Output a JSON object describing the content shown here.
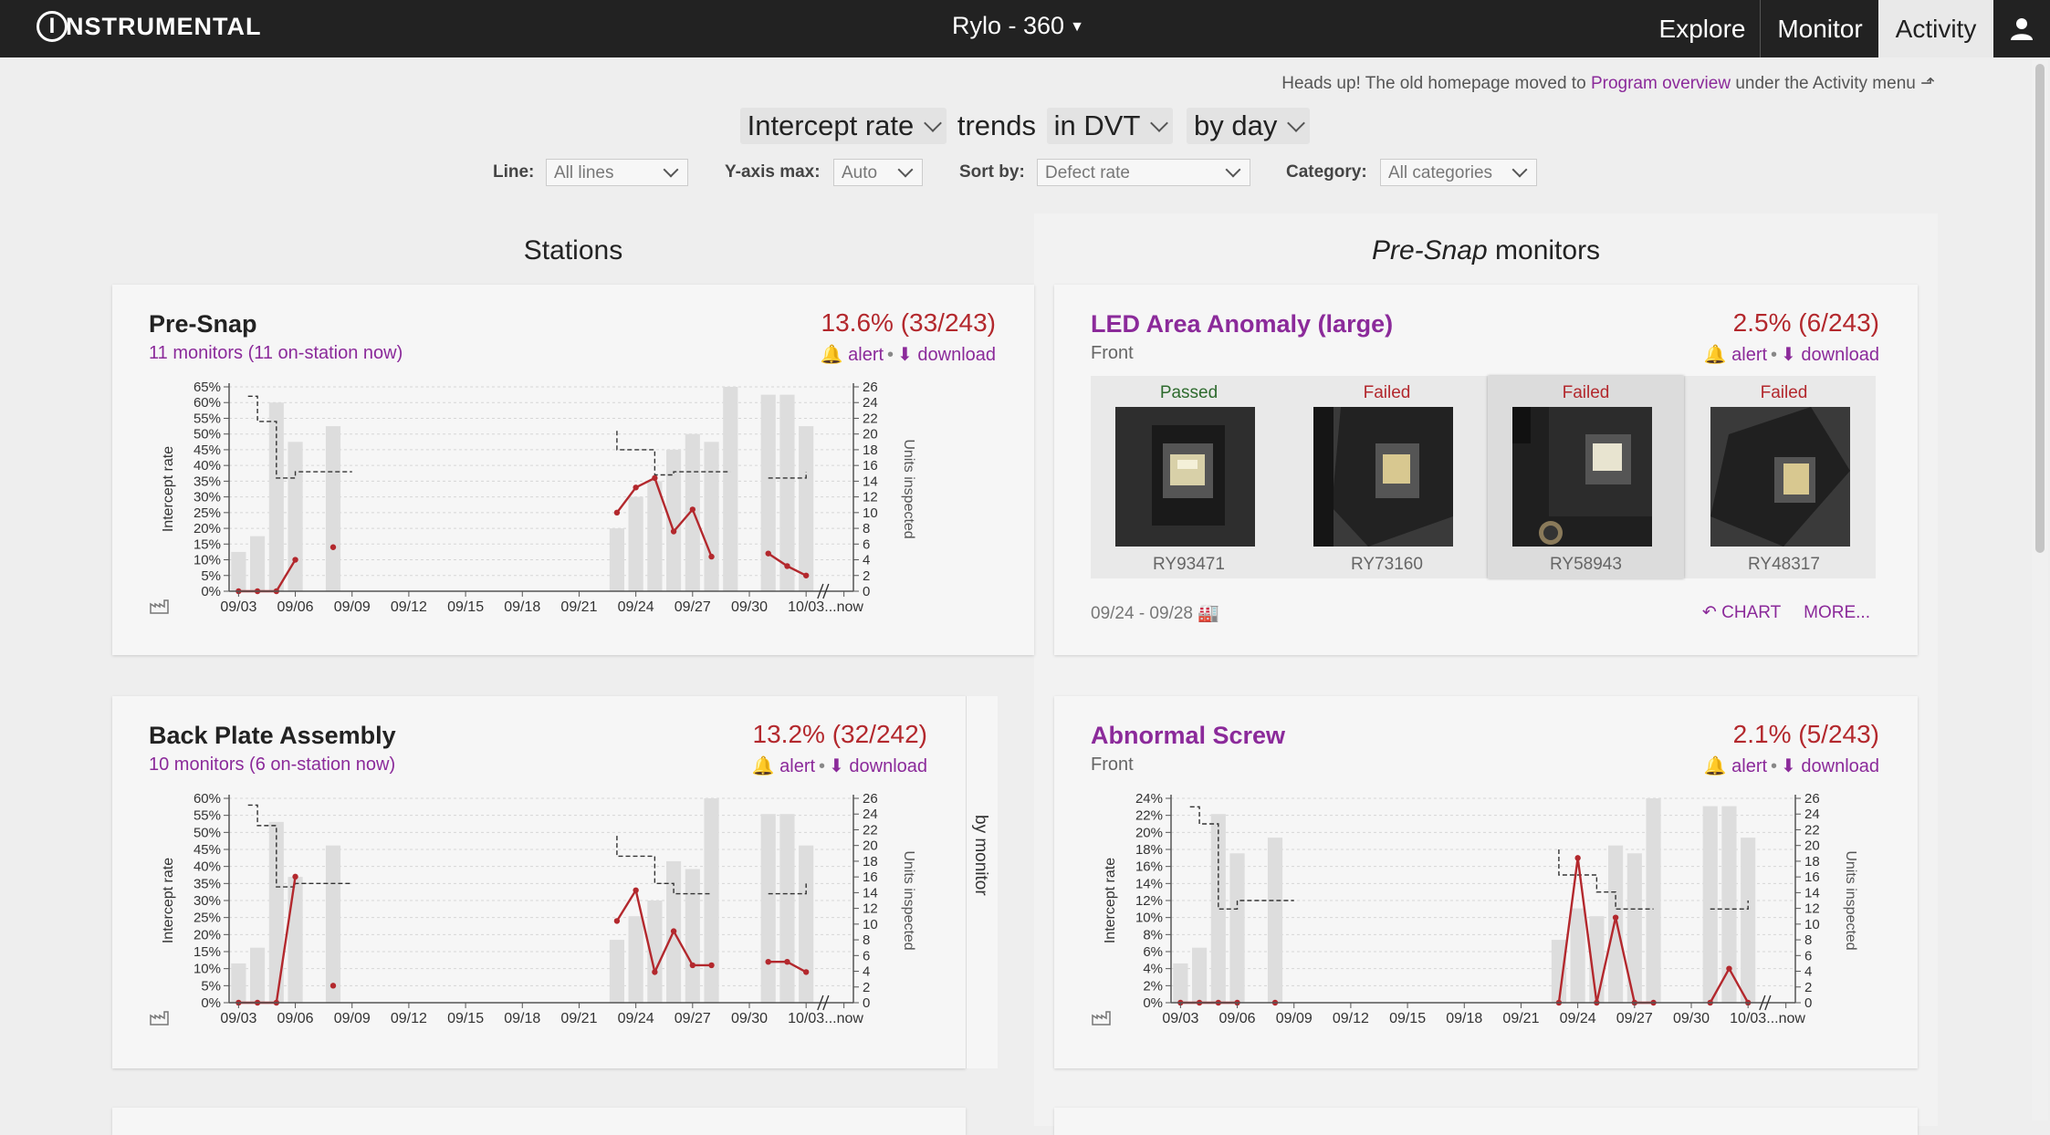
{
  "topbar": {
    "logo_letter": "I",
    "logo_text": "NSTRUMENTAL",
    "program": "Rylo - 360",
    "nav": [
      "Explore",
      "Monitor",
      "Activity"
    ],
    "user_icon": "user-icon"
  },
  "notice": {
    "prefix": "Heads up! The old homepage moved to ",
    "link": "Program overview",
    "suffix": " under the Activity menu"
  },
  "trend": {
    "metric": "Intercept rate",
    "word": "trends",
    "build": "in DVT",
    "period": "by day"
  },
  "filters": {
    "line_label": "Line:",
    "line_value": "All lines",
    "ymax_label": "Y-axis max:",
    "ymax_value": "Auto",
    "sort_label": "Sort by:",
    "sort_value": "Defect rate",
    "category_label": "Category:",
    "category_value": "All categories"
  },
  "columns": {
    "stations": "Stations",
    "monitors_em": "Pre-Snap",
    "monitors_rest": " monitors"
  },
  "cards": {
    "presnap": {
      "title": "Pre-Snap",
      "subtitle": "11 monitors (11 on-station now)",
      "rate": "13.6% (33/243)",
      "alert": "alert",
      "download": "download"
    },
    "backplate": {
      "title": "Back Plate Assembly",
      "subtitle": "10 monitors (6 on-station now)",
      "rate": "13.2% (32/242)",
      "alert": "alert",
      "download": "download"
    },
    "led": {
      "title": "LED Area Anomaly (large)",
      "subtitle": "Front",
      "rate": "2.5% (6/243)",
      "alert": "alert",
      "download": "download",
      "thumbs": [
        {
          "status": "Passed",
          "id": "RY93471"
        },
        {
          "status": "Failed",
          "id": "RY73160"
        },
        {
          "status": "Failed",
          "id": "RY58943"
        },
        {
          "status": "Failed",
          "id": "RY48317"
        }
      ],
      "daterange": "09/24 - 09/28",
      "chart_link": "CHART",
      "more_link": "MORE..."
    },
    "screw": {
      "title": "Abnormal Screw",
      "subtitle": "Front",
      "rate": "2.1% (5/243)",
      "alert": "alert",
      "download": "download"
    }
  },
  "by_monitor": "by monitor",
  "chart_data": [
    {
      "name": "Pre-Snap",
      "type": "bar+line",
      "ylabel": "Intercept rate",
      "y2label": "Units inspected",
      "ylim": [
        0,
        65
      ],
      "yticks": [
        "0%",
        "5%",
        "10%",
        "15%",
        "20%",
        "25%",
        "30%",
        "35%",
        "40%",
        "45%",
        "50%",
        "55%",
        "60%",
        "65%"
      ],
      "y2lim": [
        0,
        26
      ],
      "y2ticks": [
        0,
        2,
        4,
        6,
        8,
        10,
        12,
        14,
        16,
        18,
        20,
        22,
        24,
        26
      ],
      "xticks": [
        "09/03",
        "09/06",
        "09/09",
        "09/12",
        "09/15",
        "09/18",
        "09/21",
        "09/24",
        "09/27",
        "09/30",
        "10/03",
        "...now"
      ],
      "bars": [
        [
          1,
          5
        ],
        [
          2,
          7
        ],
        [
          3,
          24
        ],
        [
          4,
          19
        ],
        [
          6,
          21
        ],
        [
          21,
          8
        ],
        [
          22,
          12
        ],
        [
          23,
          14
        ],
        [
          24,
          18
        ],
        [
          25,
          20
        ],
        [
          26,
          19
        ],
        [
          27,
          26
        ],
        [
          29,
          25
        ],
        [
          30,
          25
        ],
        [
          31,
          21
        ]
      ],
      "line": [
        [
          1,
          0
        ],
        [
          2,
          0
        ],
        [
          3,
          0
        ],
        [
          4,
          10
        ],
        null,
        [
          6,
          14
        ],
        null,
        [
          21,
          25
        ],
        [
          22,
          33
        ],
        [
          23,
          36
        ],
        [
          24,
          19
        ],
        [
          25,
          26
        ],
        [
          26,
          11
        ],
        null,
        [
          29,
          12
        ],
        [
          30,
          8
        ],
        [
          31,
          5
        ]
      ],
      "mean": [
        [
          1.5,
          62
        ],
        [
          2,
          62
        ],
        [
          2,
          54
        ],
        [
          3,
          54
        ],
        [
          3,
          36
        ],
        [
          4,
          36
        ],
        [
          4,
          38
        ],
        [
          7,
          38
        ],
        null,
        [
          21,
          51
        ],
        [
          21,
          45
        ],
        [
          23,
          45
        ],
        [
          23,
          37
        ],
        [
          24,
          37
        ],
        [
          24,
          38
        ],
        [
          27,
          38
        ],
        null,
        [
          29,
          36
        ],
        [
          31,
          36
        ],
        [
          31,
          38
        ]
      ]
    },
    {
      "name": "Back Plate Assembly",
      "type": "bar+line",
      "ylabel": "Intercept rate",
      "y2label": "Units inspected",
      "ylim": [
        0,
        60
      ],
      "yticks": [
        "0%",
        "5%",
        "10%",
        "15%",
        "20%",
        "25%",
        "30%",
        "35%",
        "40%",
        "45%",
        "50%",
        "55%",
        "60%"
      ],
      "y2lim": [
        0,
        26
      ],
      "y2ticks": [
        0,
        2,
        4,
        6,
        8,
        10,
        12,
        14,
        16,
        18,
        20,
        22,
        24,
        26
      ],
      "xticks": [
        "09/03",
        "09/06",
        "09/09",
        "09/12",
        "09/15",
        "09/18",
        "09/21",
        "09/24",
        "09/27",
        "09/30",
        "10/03",
        "...now"
      ],
      "bars": [
        [
          1,
          5
        ],
        [
          2,
          7
        ],
        [
          3,
          23
        ],
        [
          4,
          16
        ],
        [
          6,
          20
        ],
        [
          21,
          8
        ],
        [
          22,
          11
        ],
        [
          23,
          13
        ],
        [
          24,
          18
        ],
        [
          25,
          17
        ],
        [
          26,
          26
        ],
        [
          29,
          24
        ],
        [
          30,
          24
        ],
        [
          31,
          20
        ]
      ],
      "line": [
        [
          1,
          0
        ],
        [
          2,
          0
        ],
        [
          3,
          0
        ],
        [
          4,
          37
        ],
        null,
        [
          6,
          5
        ],
        null,
        [
          21,
          24
        ],
        [
          22,
          33
        ],
        [
          23,
          9
        ],
        [
          24,
          21
        ],
        [
          25,
          11
        ],
        [
          26,
          11
        ],
        null,
        [
          29,
          12
        ],
        [
          30,
          12
        ],
        [
          31,
          9
        ]
      ],
      "mean": [
        [
          1.5,
          58
        ],
        [
          2,
          58
        ],
        [
          2,
          52
        ],
        [
          3,
          52
        ],
        [
          3,
          34
        ],
        [
          4,
          34
        ],
        [
          4,
          35
        ],
        [
          7,
          35
        ],
        null,
        [
          21,
          49
        ],
        [
          21,
          43
        ],
        [
          23,
          43
        ],
        [
          23,
          35
        ],
        [
          24,
          35
        ],
        [
          24,
          32
        ],
        [
          26,
          32
        ],
        null,
        [
          29,
          32
        ],
        [
          31,
          32
        ],
        [
          31,
          35
        ]
      ]
    },
    {
      "name": "Abnormal Screw",
      "type": "bar+line",
      "ylabel": "Intercept rate",
      "y2label": "Units inspected",
      "ylim": [
        0,
        24
      ],
      "yticks": [
        "0%",
        "2%",
        "4%",
        "6%",
        "8%",
        "10%",
        "12%",
        "14%",
        "16%",
        "18%",
        "20%",
        "22%",
        "24%"
      ],
      "y2lim": [
        0,
        26
      ],
      "y2ticks": [
        0,
        2,
        4,
        6,
        8,
        10,
        12,
        14,
        16,
        18,
        20,
        22,
        24,
        26
      ],
      "xticks": [
        "09/03",
        "09/06",
        "09/09",
        "09/12",
        "09/15",
        "09/18",
        "09/21",
        "09/24",
        "09/27",
        "09/30",
        "10/03",
        "...now"
      ],
      "bars": [
        [
          1,
          5
        ],
        [
          2,
          7
        ],
        [
          3,
          24
        ],
        [
          4,
          19
        ],
        [
          6,
          21
        ],
        [
          21,
          8
        ],
        [
          22,
          12
        ],
        [
          23,
          11
        ],
        [
          24,
          20
        ],
        [
          25,
          19
        ],
        [
          26,
          26
        ],
        [
          29,
          25
        ],
        [
          30,
          25
        ],
        [
          31,
          21
        ]
      ],
      "line": [
        [
          1,
          0
        ],
        [
          2,
          0
        ],
        [
          3,
          0
        ],
        [
          4,
          0
        ],
        null,
        [
          6,
          0
        ],
        null,
        [
          21,
          0
        ],
        [
          22,
          17
        ],
        [
          23,
          0
        ],
        [
          24,
          10
        ],
        [
          25,
          0
        ],
        [
          26,
          0
        ],
        null,
        [
          29,
          0
        ],
        [
          30,
          4
        ],
        [
          31,
          0
        ]
      ],
      "mean": [
        [
          1.5,
          23
        ],
        [
          2,
          23
        ],
        [
          2,
          21
        ],
        [
          3,
          21
        ],
        [
          3,
          11
        ],
        [
          4,
          11
        ],
        [
          4,
          12
        ],
        [
          7,
          12
        ],
        null,
        [
          21,
          18
        ],
        [
          21,
          15
        ],
        [
          23,
          15
        ],
        [
          23,
          13
        ],
        [
          24,
          13
        ],
        [
          24,
          11
        ],
        [
          26,
          11
        ],
        null,
        [
          29,
          11
        ],
        [
          31,
          11
        ],
        [
          31,
          12
        ]
      ]
    }
  ]
}
